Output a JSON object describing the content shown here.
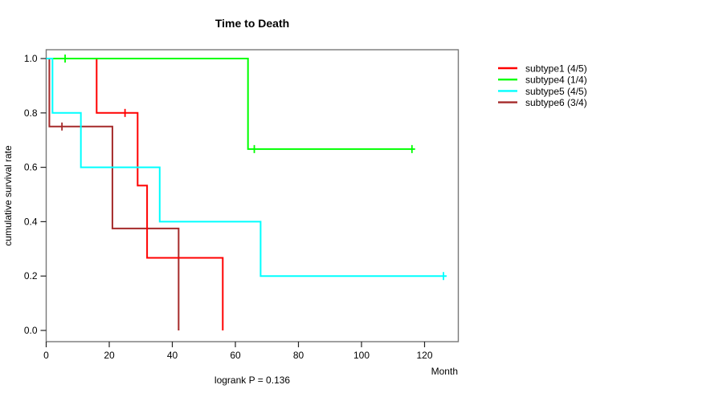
{
  "chart_data": {
    "type": "line",
    "subtype": "kaplan-meier-step",
    "title": "Time to Death",
    "xlabel": "Month",
    "ylabel": "cumulative survival rate",
    "annotation": "logrank P = 0.136",
    "xlim": [
      0,
      131
    ],
    "ylim": [
      0,
      1
    ],
    "grid": false,
    "legend_position": "right-outside",
    "xticks": [
      0,
      20,
      40,
      60,
      80,
      100,
      120
    ],
    "xtick_labels": [
      "0",
      "20",
      "40",
      "60",
      "80",
      "100",
      "120"
    ],
    "yticks": [
      0,
      0.2,
      0.4,
      0.6,
      0.8,
      1.0
    ],
    "ytick_labels": [
      "0.0",
      "0.2",
      "0.4",
      "0.6",
      "0.8",
      "1.0"
    ],
    "series": [
      {
        "name": "subtype1 (4/5)",
        "color": "#ff0000",
        "steps": [
          [
            0,
            1.0
          ],
          [
            16,
            0.8
          ],
          [
            29,
            0.533
          ],
          [
            32,
            0.267
          ],
          [
            56,
            0.0
          ]
        ],
        "censor_marks": [
          [
            25,
            0.8
          ]
        ],
        "end_month": 56
      },
      {
        "name": "subtype4 (1/4)",
        "color": "#00ff00",
        "steps": [
          [
            0,
            1.0
          ],
          [
            64,
            0.667
          ]
        ],
        "censor_marks": [
          [
            6,
            1.0
          ],
          [
            66,
            0.667
          ],
          [
            116,
            0.667
          ]
        ],
        "end_month": 117
      },
      {
        "name": "subtype5 (4/5)",
        "color": "#00ffff",
        "steps": [
          [
            0,
            1.0
          ],
          [
            2,
            0.8
          ],
          [
            11,
            0.6
          ],
          [
            36,
            0.4
          ],
          [
            68,
            0.2
          ]
        ],
        "censor_marks": [
          [
            126,
            0.2
          ]
        ],
        "end_month": 127
      },
      {
        "name": "subtype6 (3/4)",
        "color": "#a52a2a",
        "steps": [
          [
            0,
            1.0
          ],
          [
            1,
            0.75
          ],
          [
            21,
            0.375
          ],
          [
            42,
            0.0
          ]
        ],
        "censor_marks": [
          [
            5,
            0.75
          ]
        ],
        "end_month": 42
      }
    ],
    "colors": {
      "box_stroke": "#777777",
      "tick_stroke": "#222222",
      "text": "#000000"
    }
  }
}
